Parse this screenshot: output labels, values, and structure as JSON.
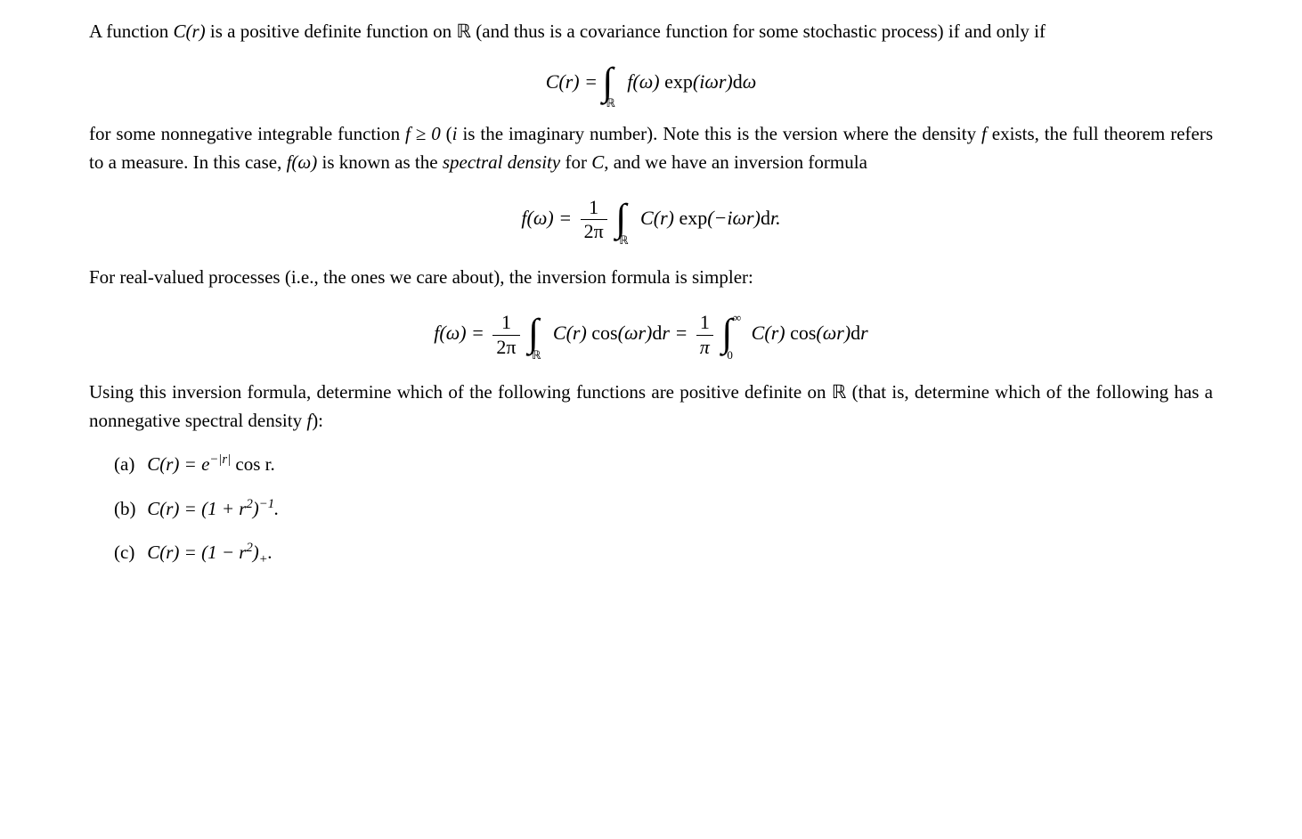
{
  "para1_a": "A function ",
  "para1_b": " is a positive definite function on ",
  "para1_c": " (and thus is a covariance function for some stochastic process) if and only if",
  "C_of_r": "C(r)",
  "bbR": "ℝ",
  "eq1_lhs": "C(r) = ",
  "eq1_integrand": "f(ω) exp(iωr)dω",
  "para2_a": "for some nonnegative integrable function ",
  "para2_b": " (",
  "para2_c": " is the imaginary number). Note this is the version where the density ",
  "para2_d": " exists, the full theorem refers to a measure. In this case, ",
  "para2_e": " is known as the ",
  "para2_f": " for ",
  "para2_g": ", and we have an inversion formula",
  "f_geq_0": "f ≥ 0",
  "i_sym": "i",
  "f_sym": "f",
  "f_of_omega": "f(ω)",
  "spectral_density": "spectral density",
  "C_sym": "C",
  "eq2_lhs": "f(ω) = ",
  "eq2_integrand": "C(r) exp(−iωr)dr.",
  "frac_1": "1",
  "frac_2pi": "2π",
  "frac_pi": "π",
  "para3": "For real-valued processes (i.e., the ones we care about), the inversion formula is simpler:",
  "eq3_lhs": "f(ω) = ",
  "eq3_mid": "C(r) cos(ωr)dr = ",
  "eq3_rhs": "C(r) cos(ωr)dr",
  "int_lower_0": "0",
  "int_upper_inf": "∞",
  "para4_a": "Using this inversion formula, determine which of the following functions are positive definite on ",
  "para4_b": " (that is, determine which of the following has a nonnegative spectral density ",
  "para4_c": "):",
  "items": {
    "a": {
      "label": "(a)",
      "text_a": "C(r) = e",
      "sup": "−|r|",
      "text_b": " cos r."
    },
    "b": {
      "label": "(b)",
      "text_a": "C(r) = (1 + r",
      "sup1": "2",
      "text_b": ")",
      "sup2": "−1",
      "text_c": "."
    },
    "c": {
      "label": "(c)",
      "text_a": "C(r) = (1 − r",
      "sup1": "2",
      "text_b": ")",
      "sub": "+",
      "text_c": "."
    }
  }
}
